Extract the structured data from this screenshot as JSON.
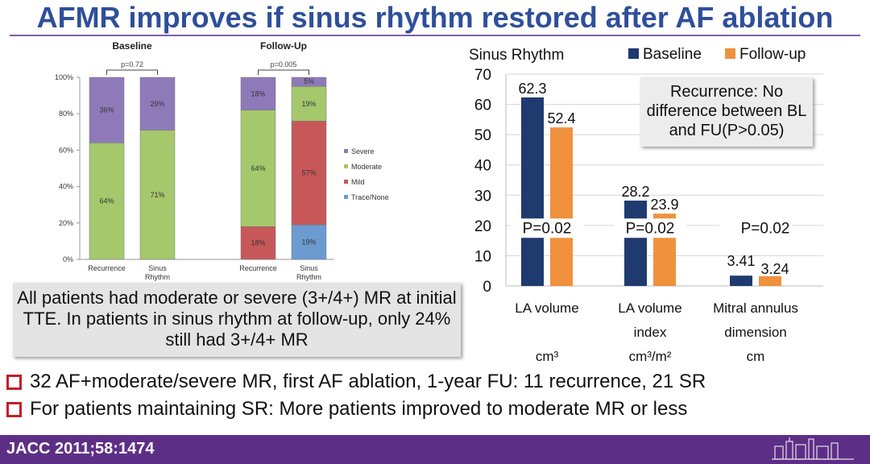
{
  "title": "AFMR improves if sinus rhythm restored after AF ablation",
  "left_chart": {
    "type": "bar",
    "stacked": true,
    "panels": [
      {
        "name": "Baseline",
        "p_value": "p=0.72",
        "categories": [
          "Recurrence",
          "Sinus Rhythm"
        ],
        "segments": [
          {
            "Trace/None": 0,
            "Mild": 0,
            "Moderate": 64,
            "Severe": 36
          },
          {
            "Trace/None": 0,
            "Mild": 0,
            "Moderate": 71,
            "Severe": 29
          }
        ],
        "labels": [
          [
            "64%",
            "36%"
          ],
          [
            "71%",
            "29%"
          ]
        ]
      },
      {
        "name": "Follow-Up",
        "p_value": "p=0.005",
        "categories": [
          "Recurrence",
          "Sinus Rhythm"
        ],
        "segments": [
          {
            "Trace/None": 0,
            "Mild": 18,
            "Moderate": 64,
            "Severe": 18
          },
          {
            "Trace/None": 19,
            "Mild": 57,
            "Moderate": 19,
            "Severe": 5
          }
        ],
        "labels": [
          [
            "18%",
            "64%",
            "18%"
          ],
          [
            "19%",
            "57%",
            "19%",
            "5%"
          ]
        ]
      }
    ],
    "y_ticks": [
      "0%",
      "20%",
      "40%",
      "60%",
      "80%",
      "100%"
    ],
    "legend": [
      "Severe",
      "Moderate",
      "Mild",
      "Trace/None"
    ],
    "colors": {
      "Severe": "#8f7ab9",
      "Moderate": "#a5c86c",
      "Mild": "#c8575a",
      "Trace/None": "#6c9bd2"
    }
  },
  "chart_data": {
    "type": "bar",
    "title": "Sinus Rhythm",
    "ylim": [
      0,
      70
    ],
    "y_ticks": [
      "0",
      "10",
      "20",
      "30",
      "40",
      "50",
      "60",
      "70"
    ],
    "categories": [
      "LA volume",
      "LA volume index",
      "Mitral annulus dimension"
    ],
    "category_lines": [
      [
        "LA volume",
        "",
        "cm³"
      ],
      [
        "LA volume",
        "index",
        "cm³/m²"
      ],
      [
        "Mitral annulus",
        "dimension",
        "cm"
      ]
    ],
    "series": [
      {
        "name": "Baseline",
        "values": [
          62.3,
          28.2,
          3.41
        ],
        "labels": [
          "62.3",
          "28.2",
          "3.41"
        ],
        "color": "#1f3a6e"
      },
      {
        "name": "Follow-up",
        "values": [
          52.4,
          23.9,
          3.24
        ],
        "labels": [
          "52.4",
          "23.9",
          "3.24"
        ],
        "color": "#f0913e"
      }
    ],
    "p_values": [
      "P=0.02",
      "P=0.02",
      "P=0.02"
    ]
  },
  "note": "Recurrence: No difference between BL and FU(P>0.05)",
  "callout": "All patients had moderate or severe (3+/4+) MR at initial TTE. In patients in sinus rhythm at follow-up, only 24% still had 3+/4+ MR",
  "bullets": [
    "32 AF+moderate/severe MR, first AF ablation, 1-year FU: 11 recurrence, 21 SR",
    "For patients maintaining SR: More patients improved to moderate MR or less"
  ],
  "footer": "JACC 2011;58:1474"
}
